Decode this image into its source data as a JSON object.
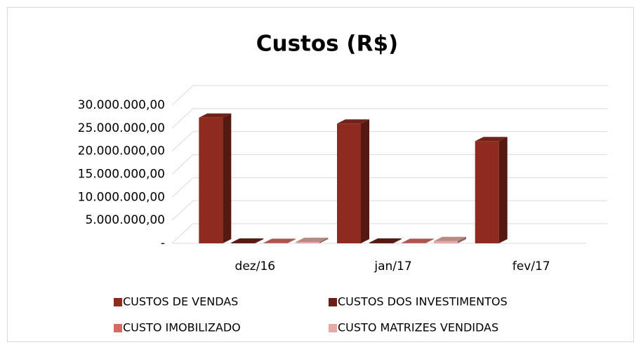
{
  "chart_data": {
    "type": "bar3d",
    "title": "Custos (R$)",
    "categories": [
      "dez/16",
      "jan/17",
      "fev/17"
    ],
    "series": [
      {
        "name": "CUSTOS DE VENDAS",
        "color": "#8e2a1e",
        "values": [
          27300000,
          26000000,
          22200000
        ]
      },
      {
        "name": "CUSTOS DOS INVESTIMENTOS",
        "color": "#6a2016",
        "values": [
          150000,
          150000,
          null
        ]
      },
      {
        "name": "CUSTO IMOBILIZADO",
        "color": "#d46a62",
        "values": [
          100000,
          100000,
          null
        ]
      },
      {
        "name": "CUSTO MATRIZES VENDIDAS",
        "color": "#e6aaa6",
        "values": [
          300000,
          500000,
          null
        ]
      }
    ],
    "ylim": [
      0,
      30000000
    ],
    "yticks": [
      {
        "value": 0,
        "label": "-"
      },
      {
        "value": 5000000,
        "label": "5.000.000,00"
      },
      {
        "value": 10000000,
        "label": "10.000.000,00"
      },
      {
        "value": 15000000,
        "label": "15.000.000,00"
      },
      {
        "value": 20000000,
        "label": "20.000.000,00"
      },
      {
        "value": 25000000,
        "label": "25.000.000,00"
      },
      {
        "value": 30000000,
        "label": "30.000.000,00"
      }
    ],
    "grid": true
  }
}
